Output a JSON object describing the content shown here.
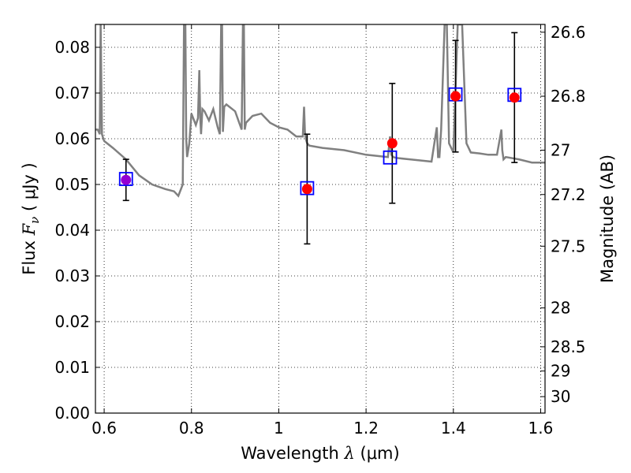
{
  "chart_data": {
    "type": "scatter",
    "xlabel": {
      "prefix": "Wavelength  ",
      "symbol": "λ",
      "unit": " (μm)"
    },
    "ylabel": {
      "prefix": "Flux  ",
      "symbol": "F",
      "subscript": "ν",
      "unit": "  ( μJy )"
    },
    "y2label": "Magnitude (AB)",
    "xlim": [
      0.58,
      1.61
    ],
    "ylim": [
      0.0,
      0.085
    ],
    "grid": true,
    "x_ticks": [
      {
        "value": 0.6,
        "label": "0.6"
      },
      {
        "value": 0.8,
        "label": "0.8"
      },
      {
        "value": 1.0,
        "label": "1"
      },
      {
        "value": 1.2,
        "label": "1.2"
      },
      {
        "value": 1.4,
        "label": "1.4"
      },
      {
        "value": 1.6,
        "label": "1.6"
      }
    ],
    "y_ticks": [
      {
        "value": 0.0,
        "label": "0.00"
      },
      {
        "value": 0.01,
        "label": "0.01"
      },
      {
        "value": 0.02,
        "label": "0.02"
      },
      {
        "value": 0.03,
        "label": "0.03"
      },
      {
        "value": 0.04,
        "label": "0.04"
      },
      {
        "value": 0.05,
        "label": "0.05"
      },
      {
        "value": 0.06,
        "label": "0.06"
      },
      {
        "value": 0.07,
        "label": "0.07"
      },
      {
        "value": 0.08,
        "label": "0.08"
      }
    ],
    "y2_ticks": [
      {
        "flux": 0.0833,
        "label": "26.6"
      },
      {
        "flux": 0.0693,
        "label": "26.8"
      },
      {
        "flux": 0.0575,
        "label": "27"
      },
      {
        "flux": 0.0478,
        "label": "27.2"
      },
      {
        "flux": 0.0365,
        "label": "27.5"
      },
      {
        "flux": 0.023,
        "label": "28"
      },
      {
        "flux": 0.0145,
        "label": "28.5"
      },
      {
        "flux": 0.0092,
        "label": "29"
      },
      {
        "flux": 0.0036,
        "label": "30"
      }
    ],
    "series": [
      {
        "kind": "line",
        "color": "#808080",
        "x": [
          0.58,
          0.585,
          0.59,
          0.592,
          0.595,
          0.598,
          0.6,
          0.62,
          0.65,
          0.68,
          0.71,
          0.74,
          0.76,
          0.77,
          0.78,
          0.783,
          0.786,
          0.788,
          0.79,
          0.795,
          0.8,
          0.81,
          0.815,
          0.818,
          0.82,
          0.822,
          0.825,
          0.83,
          0.835,
          0.84,
          0.85,
          0.86,
          0.865,
          0.868,
          0.87,
          0.872,
          0.875,
          0.88,
          0.9,
          0.915,
          0.918,
          0.92,
          0.922,
          0.925,
          0.94,
          0.96,
          0.98,
          1.0,
          1.02,
          1.04,
          1.055,
          1.058,
          1.06,
          1.062,
          1.065,
          1.07,
          1.1,
          1.15,
          1.2,
          1.25,
          1.255,
          1.258,
          1.262,
          1.27,
          1.3,
          1.35,
          1.362,
          1.365,
          1.368,
          1.372,
          1.38,
          1.385,
          1.39,
          1.4,
          1.41,
          1.42,
          1.43,
          1.44,
          1.46,
          1.48,
          1.5,
          1.51,
          1.512,
          1.515,
          1.52,
          1.55,
          1.58,
          1.61
        ],
        "y": [
          0.062,
          0.062,
          0.061,
          0.085,
          0.061,
          0.06,
          0.0595,
          0.058,
          0.0555,
          0.052,
          0.05,
          0.049,
          0.0485,
          0.0475,
          0.05,
          0.085,
          0.085,
          0.06,
          0.056,
          0.059,
          0.0655,
          0.063,
          0.0645,
          0.075,
          0.065,
          0.061,
          0.0665,
          0.066,
          0.065,
          0.064,
          0.0665,
          0.0625,
          0.061,
          0.085,
          0.085,
          0.0615,
          0.067,
          0.0675,
          0.066,
          0.062,
          0.085,
          0.085,
          0.062,
          0.0635,
          0.065,
          0.0655,
          0.0635,
          0.0625,
          0.062,
          0.0605,
          0.0605,
          0.067,
          0.0615,
          0.06,
          0.059,
          0.0585,
          0.058,
          0.0575,
          0.0565,
          0.056,
          0.0605,
          0.0565,
          0.056,
          0.0558,
          0.0555,
          0.055,
          0.0625,
          0.056,
          0.056,
          0.062,
          0.085,
          0.085,
          0.059,
          0.057,
          0.085,
          0.085,
          0.059,
          0.057,
          0.0568,
          0.0565,
          0.0565,
          0.062,
          0.0575,
          0.0555,
          0.056,
          0.0555,
          0.0548,
          0.0548
        ]
      },
      {
        "kind": "points",
        "marker": "square",
        "edge_color": "#0000ff",
        "x": [
          0.65,
          1.065,
          1.255,
          1.405,
          1.54
        ],
        "y": [
          0.0512,
          0.0492,
          0.0559,
          0.0697,
          0.0696
        ]
      },
      {
        "kind": "points",
        "marker": "circle",
        "fill_color": "#ff0000",
        "x": [
          0.65,
          1.065,
          1.26,
          1.405,
          1.54
        ],
        "y": [
          0.051,
          0.049,
          0.059,
          0.0693,
          0.069
        ],
        "yerr_low": [
          0.0045,
          0.012,
          0.0131,
          0.0122,
          0.0142
        ],
        "yerr_high": [
          0.0045,
          0.012,
          0.0131,
          0.0122,
          0.0142
        ],
        "colors": [
          "#9400d3",
          "#ff0000",
          "#ff0000",
          "#ff0000",
          "#ff0000"
        ]
      }
    ]
  }
}
